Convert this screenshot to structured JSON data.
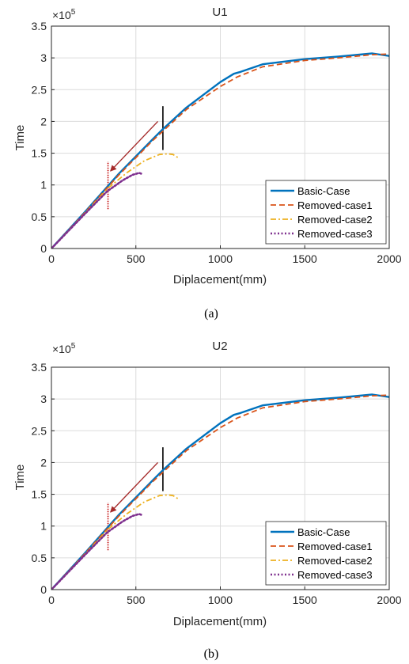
{
  "figure": {
    "panels": [
      {
        "caption": "(a)"
      },
      {
        "caption": "(b)"
      }
    ]
  },
  "chart_data": [
    {
      "type": "line",
      "title": "U1",
      "xlabel": "Diplacement(mm)",
      "ylabel": "Time",
      "xlim": [
        0,
        2000
      ],
      "ylim": [
        0,
        350000
      ],
      "x_ticks": [
        "0",
        "500",
        "1000",
        "1500",
        "2000"
      ],
      "y_ticks": [
        "0",
        "0.5",
        "1",
        "1.5",
        "2",
        "2.5",
        "3",
        "3.5"
      ],
      "y_exponent": "×10",
      "y_exponent_power": "5",
      "grid": true,
      "legend_position": "bottom-right",
      "series": [
        {
          "name": "Basic-Case",
          "color": "#0072BD",
          "style": "solid",
          "x": [
            0,
            200,
            400,
            600,
            660,
            800,
            1000,
            1080,
            1120,
            1250,
            1500,
            1700,
            1900,
            2000
          ],
          "y": [
            0,
            58000,
            118000,
            172000,
            188000,
            222000,
            262000,
            275000,
            278000,
            290000,
            298000,
            302000,
            307000,
            303000
          ]
        },
        {
          "name": "Removed-case1",
          "color": "#D95319",
          "style": "dashed",
          "x": [
            0,
            200,
            400,
            600,
            800,
            1000,
            1100,
            1250,
            1500,
            1700,
            1900,
            2000
          ],
          "y": [
            0,
            57000,
            116000,
            170000,
            219000,
            255000,
            270000,
            286000,
            296000,
            300000,
            305000,
            306000
          ]
        },
        {
          "name": "Removed-case2",
          "color": "#EDB120",
          "style": "dashdot",
          "x": [
            0,
            200,
            340,
            450,
            550,
            640,
            690,
            720,
            750
          ],
          "y": [
            0,
            56000,
            96000,
            120000,
            138000,
            148000,
            149000,
            148000,
            143000
          ]
        },
        {
          "name": "Removed-case3",
          "color": "#7E2F8E",
          "style": "dotted",
          "x": [
            0,
            200,
            330,
            420,
            480,
            520,
            540
          ],
          "y": [
            0,
            55000,
            90000,
            107000,
            116000,
            119000,
            117000
          ]
        }
      ],
      "annotations": [
        {
          "type": "vline",
          "x": 660,
          "y0": 155000,
          "y1": 224000,
          "color": "#000000",
          "style": "solid"
        },
        {
          "type": "vline",
          "x": 335,
          "y0": 62000,
          "y1": 137000,
          "color": "#C00000",
          "style": "dotted"
        },
        {
          "type": "arrow",
          "from": [
            630,
            200000
          ],
          "to": [
            350,
            122000
          ],
          "color": "#A52A2A"
        }
      ]
    },
    {
      "type": "line",
      "title": "U2",
      "xlabel": "Diplacement(mm)",
      "ylabel": "Time",
      "xlim": [
        0,
        2000
      ],
      "ylim": [
        0,
        350000
      ],
      "x_ticks": [
        "0",
        "500",
        "1000",
        "1500",
        "2000"
      ],
      "y_ticks": [
        "0",
        "0.5",
        "1",
        "1.5",
        "2",
        "2.5",
        "3",
        "3.5"
      ],
      "y_exponent": "×10",
      "y_exponent_power": "5",
      "grid": true,
      "legend_position": "bottom-right",
      "series": [
        {
          "name": "Basic-Case",
          "color": "#0072BD",
          "style": "solid",
          "x": [
            0,
            200,
            400,
            600,
            660,
            800,
            1000,
            1080,
            1120,
            1250,
            1500,
            1700,
            1900,
            2000
          ],
          "y": [
            0,
            58000,
            118000,
            172000,
            188000,
            222000,
            262000,
            275000,
            278000,
            290000,
            298000,
            302000,
            307000,
            303000
          ]
        },
        {
          "name": "Removed-case1",
          "color": "#D95319",
          "style": "dashed",
          "x": [
            0,
            200,
            400,
            600,
            800,
            1000,
            1100,
            1250,
            1500,
            1700,
            1900,
            2000
          ],
          "y": [
            0,
            57000,
            116000,
            170000,
            219000,
            255000,
            270000,
            286000,
            296000,
            300000,
            305000,
            306000
          ]
        },
        {
          "name": "Removed-case2",
          "color": "#EDB120",
          "style": "dashdot",
          "x": [
            0,
            200,
            340,
            450,
            550,
            640,
            690,
            720,
            750
          ],
          "y": [
            0,
            56000,
            96000,
            120000,
            138000,
            148000,
            149000,
            148000,
            143000
          ]
        },
        {
          "name": "Removed-case3",
          "color": "#7E2F8E",
          "style": "dotted",
          "x": [
            0,
            200,
            330,
            420,
            480,
            520,
            540
          ],
          "y": [
            0,
            55000,
            90000,
            107000,
            116000,
            119000,
            117000
          ]
        }
      ],
      "annotations": [
        {
          "type": "vline",
          "x": 660,
          "y0": 155000,
          "y1": 224000,
          "color": "#000000",
          "style": "solid"
        },
        {
          "type": "vline",
          "x": 335,
          "y0": 62000,
          "y1": 137000,
          "color": "#C00000",
          "style": "dotted"
        },
        {
          "type": "arrow",
          "from": [
            630,
            200000
          ],
          "to": [
            350,
            122000
          ],
          "color": "#A52A2A"
        }
      ]
    }
  ]
}
